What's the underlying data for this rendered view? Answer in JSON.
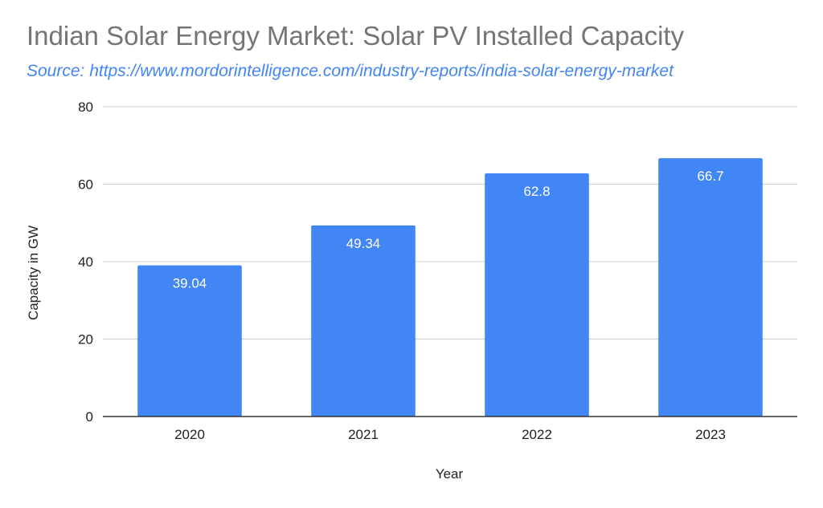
{
  "chart_data": {
    "type": "bar",
    "title": "Indian Solar Energy Market: Solar PV Installed Capacity",
    "subtitle": "Source: https://www.mordorintelligence.com/industry-reports/india-solar-energy-market",
    "categories": [
      "2020",
      "2021",
      "2022",
      "2023"
    ],
    "values": [
      39.04,
      49.34,
      62.8,
      66.7
    ],
    "data_labels": [
      "39.04",
      "49.34",
      "62.8",
      "66.7"
    ],
    "xlabel": "Year",
    "ylabel": "Capacity in GW",
    "ylim": [
      0,
      80
    ],
    "yticks": [
      0,
      20,
      40,
      60,
      80
    ],
    "grid": true,
    "legend": "none",
    "bar_color": "#4285f4",
    "grid_color": "#cccccc",
    "axis_color": "#333333"
  }
}
